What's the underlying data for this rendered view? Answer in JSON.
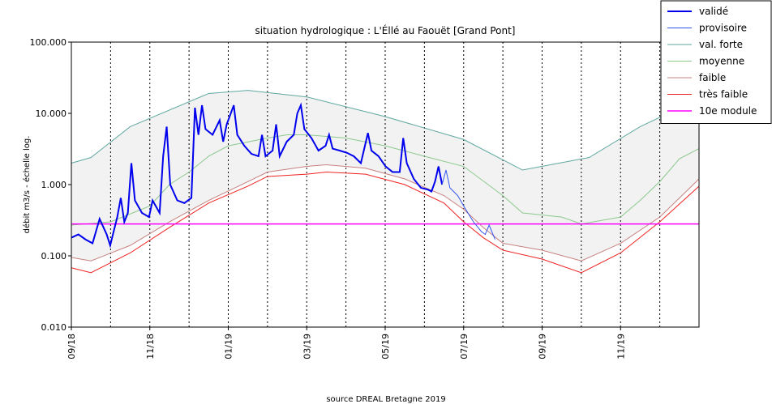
{
  "chart_data": {
    "type": "line",
    "title": "situation hydrologique : L'Éllé au Faouët [Grand Pont]",
    "y_label": "débit m3/s - échelle log.",
    "source": "source DREAL Bretagne 2019",
    "log_y": true,
    "xlim": [
      0,
      16
    ],
    "ylim": [
      0.01,
      100
    ],
    "yticks": [
      {
        "value": 0.01,
        "label": "0.010"
      },
      {
        "value": 0.1,
        "label": "0.100"
      },
      {
        "value": 1,
        "label": "1.000"
      },
      {
        "value": 10,
        "label": "10.000"
      },
      {
        "value": 100,
        "label": "100.000"
      }
    ],
    "xticks": [
      {
        "value": 0,
        "label": "09/18"
      },
      {
        "value": 2,
        "label": "11/18"
      },
      {
        "value": 4,
        "label": "01/19"
      },
      {
        "value": 6,
        "label": "03/19"
      },
      {
        "value": 8,
        "label": "05/19"
      },
      {
        "value": 10,
        "label": "07/19"
      },
      {
        "value": 12,
        "label": "09/19"
      },
      {
        "value": 14,
        "label": "11/19"
      }
    ],
    "x_minor_grid": [
      1,
      3,
      5,
      7,
      9,
      11,
      13,
      15
    ],
    "grid": true,
    "legend": "upper right",
    "fill_between": [
      2,
      4
    ],
    "fill_color": "#f2f2f2",
    "series": [
      {
        "name": "validé",
        "color": "#0000ee",
        "width": 2,
        "x": [
          0,
          0.18,
          0.36,
          0.54,
          0.72,
          0.9,
          0.99,
          1.17,
          1.26,
          1.35,
          1.44,
          1.53,
          1.62,
          1.8,
          1.98,
          2.07,
          2.25,
          2.34,
          2.43,
          2.52,
          2.7,
          2.88,
          3.06,
          3.15,
          3.24,
          3.33,
          3.42,
          3.6,
          3.78,
          3.87,
          3.96,
          4.14,
          4.23,
          4.41,
          4.59,
          4.77,
          4.86,
          4.95,
          5.13,
          5.22,
          5.31,
          5.49,
          5.67,
          5.76,
          5.85,
          5.94,
          6.12,
          6.3,
          6.48,
          6.57,
          6.66,
          6.84,
          7.02,
          7.2,
          7.38,
          7.56,
          7.65,
          7.83,
          8.01,
          8.19,
          8.37,
          8.46,
          8.55,
          8.73,
          8.91,
          9.09,
          9.18,
          9.27,
          9.36,
          9.45
        ],
        "values": [
          0.18,
          0.2,
          0.17,
          0.15,
          0.33,
          0.2,
          0.14,
          0.35,
          0.65,
          0.3,
          0.4,
          2.0,
          0.6,
          0.4,
          0.35,
          0.6,
          0.4,
          2.5,
          6.5,
          1.0,
          0.6,
          0.55,
          0.65,
          12,
          5,
          13,
          6,
          5,
          8,
          4,
          7,
          13,
          5,
          3.5,
          2.7,
          2.5,
          5,
          2.5,
          3,
          7,
          2.5,
          4,
          5,
          10,
          13,
          6,
          4.5,
          3,
          3.5,
          5,
          3.2,
          3,
          2.8,
          2.5,
          2.0,
          5.3,
          3,
          2.5,
          1.8,
          1.5,
          1.5,
          4.5,
          2,
          1.2,
          0.9,
          0.85,
          0.8,
          1.1,
          1.8,
          1.0
        ]
      },
      {
        "name": "provisoire",
        "color": "#3355ee",
        "width": 1,
        "x": [
          9.45,
          9.55,
          9.65,
          9.85,
          10.05,
          10.25,
          10.45,
          10.55,
          10.65,
          10.8
        ],
        "values": [
          1.0,
          1.6,
          0.9,
          0.7,
          0.45,
          0.3,
          0.22,
          0.2,
          0.27,
          0.17
        ]
      },
      {
        "name": "val. forte",
        "color": "#5fa8a0",
        "width": 1,
        "x": [
          0,
          0.5,
          1.5,
          3.5,
          4.5,
          6,
          8,
          10,
          11.5,
          13.2,
          14.5,
          16
        ],
        "values": [
          2.0,
          2.4,
          6.5,
          19,
          21,
          17,
          9,
          4.3,
          1.6,
          2.4,
          6.5,
          16
        ]
      },
      {
        "name": "moyenne",
        "color": "#8cc88c",
        "width": 1,
        "x": [
          0,
          1,
          2,
          2.5,
          3,
          3.5,
          4,
          5,
          5.5,
          6,
          7,
          8,
          9,
          10,
          11,
          11.5,
          12.5,
          13,
          14,
          14.5,
          15,
          15.5,
          16
        ],
        "values": [
          0.27,
          0.3,
          0.5,
          1.0,
          1.5,
          2.5,
          3.5,
          4.5,
          5.0,
          5.0,
          4.5,
          3.5,
          2.5,
          1.8,
          0.7,
          0.4,
          0.35,
          0.28,
          0.35,
          0.6,
          1.1,
          2.3,
          3.2
        ]
      },
      {
        "name": "faible",
        "color": "#c88080",
        "width": 1,
        "x": [
          0,
          0.5,
          1.5,
          2.5,
          3.5,
          4.5,
          5,
          6,
          6.5,
          7.5,
          8.5,
          9.5,
          10,
          10.5,
          11,
          12,
          13,
          14,
          15,
          16
        ],
        "values": [
          0.095,
          0.085,
          0.14,
          0.3,
          0.6,
          1.1,
          1.5,
          1.8,
          1.9,
          1.7,
          1.2,
          0.7,
          0.45,
          0.25,
          0.15,
          0.12,
          0.085,
          0.15,
          0.35,
          1.2
        ]
      },
      {
        "name": "très faible",
        "color": "#ee2222",
        "width": 1,
        "x": [
          0,
          0.5,
          1.5,
          2.5,
          3.5,
          4.5,
          5,
          6,
          6.5,
          7.5,
          8.5,
          9.5,
          10,
          10.5,
          11,
          12,
          13,
          14,
          15,
          16
        ],
        "values": [
          0.068,
          0.058,
          0.11,
          0.25,
          0.55,
          0.95,
          1.3,
          1.4,
          1.5,
          1.4,
          1.0,
          0.55,
          0.3,
          0.18,
          0.12,
          0.09,
          0.058,
          0.11,
          0.3,
          0.95
        ]
      },
      {
        "name": "10e module",
        "color": "#ff00ff",
        "width": 1.5,
        "x": [
          0,
          16
        ],
        "values": [
          0.28,
          0.28
        ]
      }
    ]
  }
}
